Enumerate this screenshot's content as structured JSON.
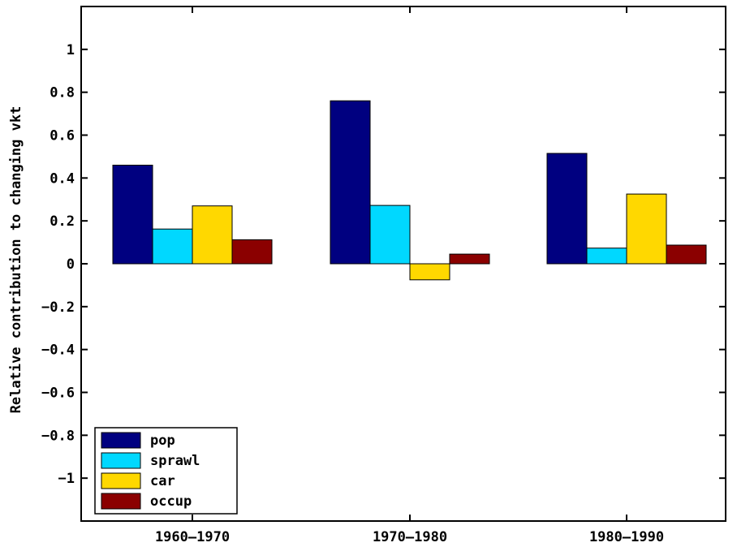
{
  "chart_data": {
    "type": "bar",
    "title": "",
    "xlabel": "",
    "ylabel": "Relative contribution to changing vkt",
    "categories": [
      "1960–1970",
      "1970–1980",
      "1980–1990"
    ],
    "series": [
      {
        "name": "pop",
        "color": "#000080",
        "values": [
          0.46,
          0.76,
          0.515
        ]
      },
      {
        "name": "sprawl",
        "color": "#00d8ff",
        "values": [
          0.162,
          0.272,
          0.073
        ]
      },
      {
        "name": "car",
        "color": "#ffd800",
        "values": [
          0.27,
          -0.075,
          0.325
        ]
      },
      {
        "name": "occup",
        "color": "#8b0000",
        "values": [
          0.112,
          0.045,
          0.087
        ]
      }
    ],
    "ylim": [
      -1.2,
      1.2
    ],
    "yticks": [
      -1,
      -0.8,
      -0.6,
      -0.4,
      -0.2,
      0,
      0.2,
      0.4,
      0.6,
      0.8,
      1
    ],
    "ytick_labels": [
      "−1",
      "−0.8",
      "−0.6",
      "−0.4",
      "−0.2",
      "0",
      "0.2",
      "0.4",
      "0.6",
      "0.8",
      "1"
    ],
    "grid": false,
    "legend_position": "bottom-left"
  }
}
